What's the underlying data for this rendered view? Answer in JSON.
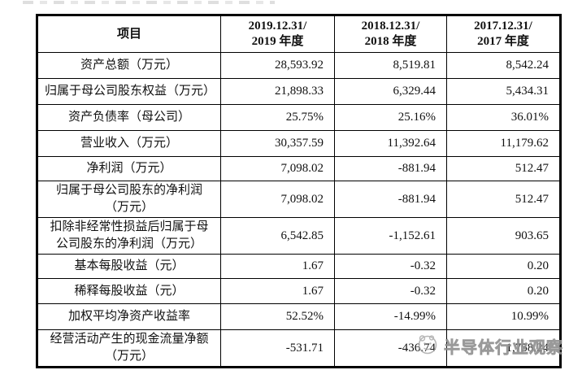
{
  "colors": {
    "table_border": "#000000",
    "text": "#111111",
    "watermark_gray": "#a6a6a6",
    "background": "#ffffff"
  },
  "watermark": {
    "text": "半导体行业观察",
    "logo_icon": "wechat-official-account-logo"
  },
  "table": {
    "header": {
      "item_label": "项目",
      "periods": [
        {
          "line1": "2019.12.31/",
          "line2": "2019 年度"
        },
        {
          "line1": "2018.12.31/",
          "line2": "2018 年度"
        },
        {
          "line1": "2017.12.31/",
          "line2": "2017 年度"
        }
      ]
    },
    "rows": [
      {
        "label": "资产总额（万元）",
        "values": [
          "28,593.92",
          "8,519.81",
          "8,542.24"
        ]
      },
      {
        "label": "归属于母公司股东权益（万元）",
        "values": [
          "21,898.33",
          "6,329.44",
          "5,434.31"
        ]
      },
      {
        "label": "资产负债率（母公司）",
        "values": [
          "25.75%",
          "25.16%",
          "36.01%"
        ]
      },
      {
        "label": "营业收入（万元）",
        "values": [
          "30,357.59",
          "11,392.64",
          "11,179.62"
        ]
      },
      {
        "label": "净利润（万元）",
        "values": [
          "7,098.02",
          "-881.94",
          "512.47"
        ]
      },
      {
        "label": "归属于母公司股东的净利润（万元）",
        "values": [
          "7,098.02",
          "-881.94",
          "512.47"
        ]
      },
      {
        "label": "扣除非经常性损益后归属于母公司股东的净利润（万元）",
        "values": [
          "6,542.85",
          "-1,152.61",
          "903.65"
        ]
      },
      {
        "label": "基本每股收益（元）",
        "values": [
          "1.67",
          "-0.32",
          "0.20"
        ]
      },
      {
        "label": "稀释每股收益（元）",
        "values": [
          "1.67",
          "-0.32",
          "0.20"
        ]
      },
      {
        "label": "加权平均净资产收益率",
        "values": [
          "52.52%",
          "-14.99%",
          "10.99%"
        ]
      },
      {
        "label": "经营活动产生的现金流量净额（万元）",
        "values": [
          "-531.71",
          "-436.74",
          "1,758.24"
        ]
      }
    ]
  }
}
